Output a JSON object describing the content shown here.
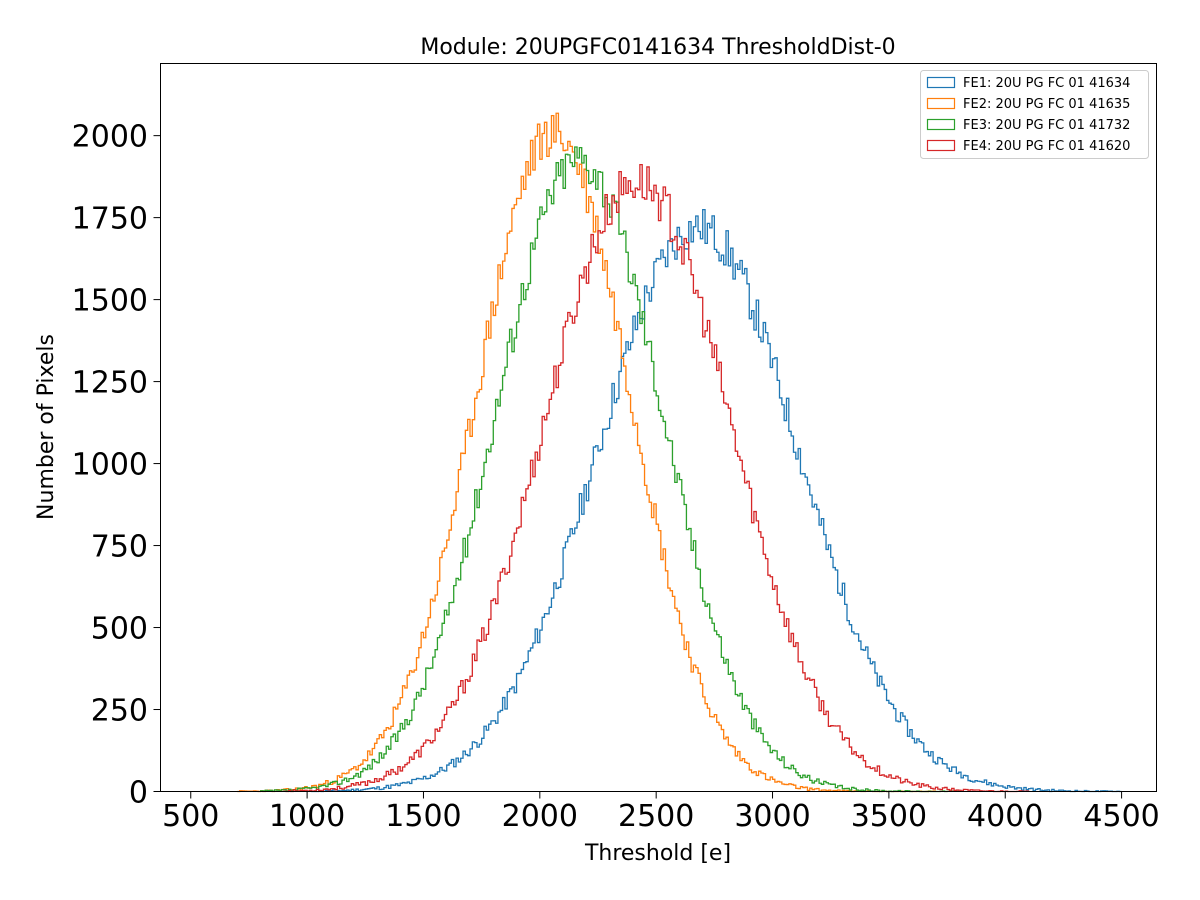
{
  "chart_data": {
    "type": "histogram-step",
    "title": "Module: 20UPGFC0141634 ThresholdDist-0",
    "xlabel": "Threshold [e]",
    "ylabel": "Number of Pixels",
    "xlim": [
      370,
      4650
    ],
    "ylim": [
      0,
      2220
    ],
    "xticks": [
      500,
      1000,
      1500,
      2000,
      2500,
      3000,
      3500,
      4000,
      4500
    ],
    "yticks": [
      0,
      250,
      500,
      750,
      1000,
      1250,
      1500,
      1750,
      2000
    ],
    "grid": false,
    "legend_position": "top-right",
    "bin_width": 10,
    "series": [
      {
        "name": "FE1: 20U PG FC 01 41634",
        "color": "#1f77b4",
        "mean": 2680,
        "sigma": 430,
        "peak": 1720,
        "range": [
          1000,
          4500
        ],
        "seed": 11
      },
      {
        "name": "FE2: 20U PG FC 01 41635",
        "color": "#ff7f0e",
        "mean": 2060,
        "sigma": 330,
        "peak": 2010,
        "range": [
          700,
          3700
        ],
        "seed": 23
      },
      {
        "name": "FE3: 20U PG FC 01 41732",
        "color": "#2ca02c",
        "mean": 2170,
        "sigma": 355,
        "peak": 1930,
        "range": [
          800,
          3800
        ],
        "seed": 37
      },
      {
        "name": "FE4: 20U PG FC 01 41620",
        "color": "#d62728",
        "mean": 2420,
        "sigma": 400,
        "peak": 1860,
        "range": [
          900,
          4100
        ],
        "seed": 53
      }
    ]
  }
}
